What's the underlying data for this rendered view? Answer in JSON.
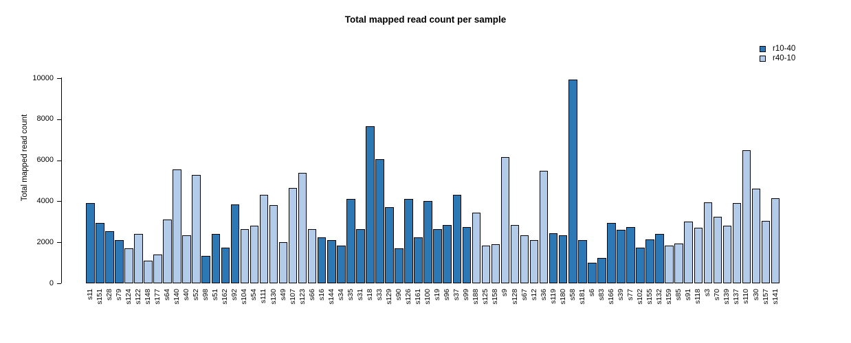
{
  "title": "Total mapped read count per sample",
  "chart_data": {
    "type": "bar",
    "title": "Total mapped read count per sample",
    "xlabel": "",
    "ylabel": "Total mapped read count",
    "ylim": [
      0,
      10000
    ],
    "yticks": [
      0,
      2000,
      4000,
      6000,
      8000,
      10000
    ],
    "grid": false,
    "legend_position": "top-right",
    "legend": [
      {
        "name": "r10-40",
        "color": "#2b78b5"
      },
      {
        "name": "r40-10",
        "color": "#b2cbe9"
      }
    ],
    "bar_border_color": "#000000",
    "categories": [
      "s11",
      "s151",
      "s28",
      "s79",
      "s124",
      "s122",
      "s148",
      "s177",
      "s64",
      "s140",
      "s40",
      "s52",
      "s98",
      "s51",
      "s162",
      "s92",
      "s104",
      "s54",
      "s111",
      "s130",
      "s49",
      "s107",
      "s123",
      "s66",
      "s16",
      "s144",
      "s34",
      "s35",
      "s31",
      "s18",
      "s33",
      "s129",
      "s90",
      "s126",
      "s161",
      "s100",
      "s19",
      "s96",
      "s37",
      "s99",
      "s188",
      "s125",
      "s158",
      "s9",
      "s128",
      "s67",
      "s12",
      "s36",
      "s119",
      "s180",
      "s58",
      "s181",
      "s6",
      "s83",
      "s166",
      "s39",
      "s77",
      "s102",
      "s155",
      "s132",
      "s159",
      "s85",
      "s91",
      "s118",
      "s3",
      "s70",
      "s139",
      "s137",
      "s110",
      "s30",
      "s157",
      "s141"
    ],
    "values": [
      3900,
      2950,
      2550,
      2100,
      1700,
      2400,
      1100,
      1400,
      3100,
      5550,
      2350,
      5300,
      1350,
      2400,
      1750,
      3850,
      2650,
      2800,
      4300,
      3800,
      2000,
      4650,
      5400,
      2650,
      2250,
      2100,
      1850,
      4100,
      2650,
      7650,
      6050,
      3700,
      1700,
      4100,
      2250,
      4000,
      2650,
      2850,
      4300,
      2750,
      3450,
      1850,
      1900,
      6150,
      2850,
      2350,
      2100,
      5500,
      2450,
      2350,
      9950,
      2100,
      1000,
      1250,
      2950,
      2600,
      2750,
      1750,
      2150,
      2400,
      1850,
      1950,
      3000,
      2700,
      3950,
      3250,
      2800,
      3900,
      6500,
      4600,
      3050,
      4150
    ],
    "groups": [
      "r10-40",
      "r10-40",
      "r10-40",
      "r10-40",
      "r40-10",
      "r40-10",
      "r40-10",
      "r40-10",
      "r40-10",
      "r40-10",
      "r40-10",
      "r40-10",
      "r10-40",
      "r10-40",
      "r10-40",
      "r10-40",
      "r40-10",
      "r40-10",
      "r40-10",
      "r40-10",
      "r40-10",
      "r40-10",
      "r40-10",
      "r40-10",
      "r10-40",
      "r10-40",
      "r10-40",
      "r10-40",
      "r10-40",
      "r10-40",
      "r10-40",
      "r10-40",
      "r10-40",
      "r10-40",
      "r10-40",
      "r10-40",
      "r10-40",
      "r10-40",
      "r10-40",
      "r10-40",
      "r40-10",
      "r40-10",
      "r40-10",
      "r40-10",
      "r40-10",
      "r40-10",
      "r40-10",
      "r40-10",
      "r10-40",
      "r10-40",
      "r10-40",
      "r10-40",
      "r10-40",
      "r10-40",
      "r10-40",
      "r10-40",
      "r10-40",
      "r10-40",
      "r10-40",
      "r10-40",
      "r40-10",
      "r40-10",
      "r40-10",
      "r40-10",
      "r40-10",
      "r40-10",
      "r40-10",
      "r40-10",
      "r40-10",
      "r40-10",
      "r40-10",
      "r40-10"
    ]
  }
}
